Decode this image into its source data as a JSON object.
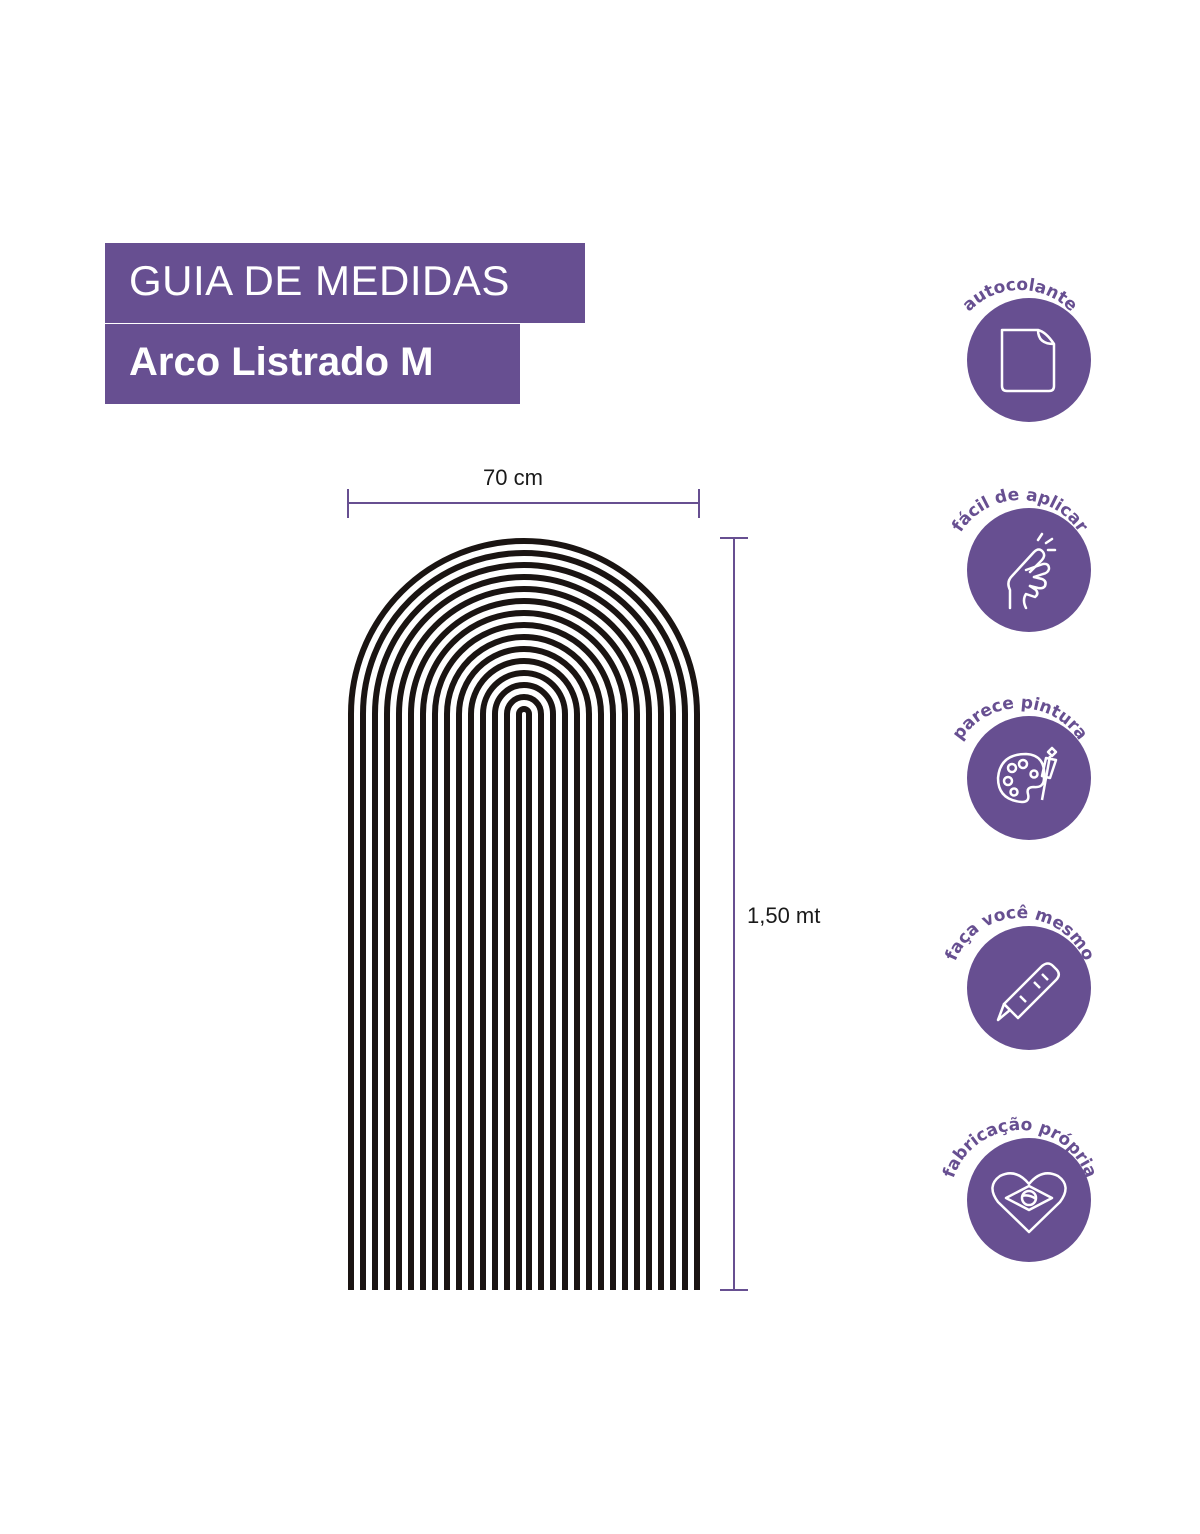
{
  "header": {
    "title": "GUIA DE MEDIDAS",
    "product_name": "Arco Listrado M"
  },
  "dimensions": {
    "width_label": "70 cm",
    "height_label": "1,50 mt"
  },
  "badges": [
    {
      "label": "autocolante",
      "icon": "sticker-peel-icon"
    },
    {
      "label": "fácil de aplicar",
      "icon": "hand-tap-icon"
    },
    {
      "label": "parece pintura",
      "icon": "paint-palette-icon"
    },
    {
      "label": "faça você mesmo",
      "icon": "box-cutter-icon"
    },
    {
      "label": "fabricação própria",
      "icon": "heart-brazil-flag-icon"
    }
  ],
  "colors": {
    "brand_purple": "#674f91",
    "stripe": "#1a1412",
    "text": "#1a1a1a"
  }
}
